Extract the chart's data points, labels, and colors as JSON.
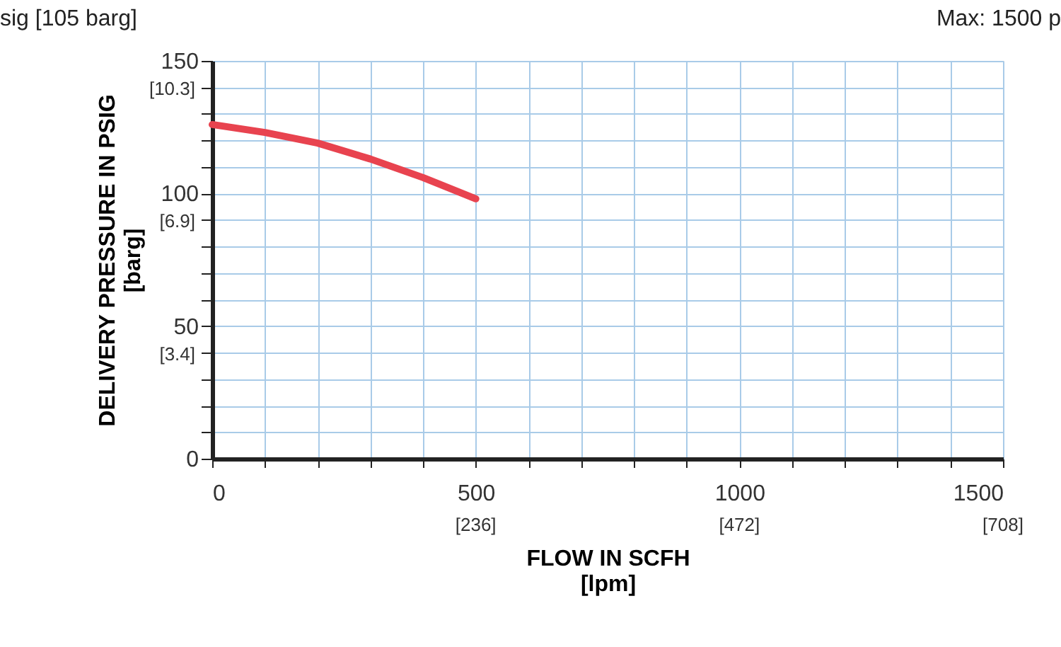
{
  "chart_data": {
    "type": "line",
    "xlabel": "FLOW IN SCFH\n[lpm]",
    "ylabel": "DELIVERY PRESSURE IN PSIG\n[barg]",
    "annotations": [
      "sig [105 barg]",
      "Max: 1500 p",
      "[10.3]",
      "[6.9]",
      "[3.4]",
      "[236]",
      "[472]",
      "[708]"
    ],
    "x": [
      0,
      100,
      200,
      300,
      400,
      500
    ],
    "series": [
      {
        "color": "#e8434f",
        "values": [
          126,
          123,
          119,
          113,
          106,
          98
        ]
      }
    ],
    "xlim": [
      0,
      1500
    ],
    "xticks": [
      0,
      {
        "value": 100,
        "label": null
      },
      {
        "value": 200,
        "label": null
      },
      {
        "value": 300,
        "label": null
      },
      {
        "value": 400,
        "label": null
      },
      500,
      {
        "value": 600,
        "label": null
      },
      {
        "value": 700,
        "label": null
      },
      {
        "value": 800,
        "label": null
      },
      {
        "value": 900,
        "label": null
      },
      1000,
      {
        "value": 1100,
        "label": null
      },
      {
        "value": 1200,
        "label": null
      },
      {
        "value": 1300,
        "label": null
      },
      {
        "value": 1400,
        "label": null
      },
      1500
    ],
    "ylim": [
      0,
      150
    ],
    "yticks": [
      0,
      {
        "value": 10,
        "label": null
      },
      {
        "value": 20,
        "label": null
      },
      {
        "value": 30,
        "label": null
      },
      {
        "value": 40,
        "label": null
      },
      50,
      {
        "value": 60,
        "label": null
      },
      {
        "value": 70,
        "label": null
      },
      {
        "value": 80,
        "label": null
      },
      {
        "value": 90,
        "label": null
      },
      100,
      {
        "value": 110,
        "label": null
      },
      {
        "value": 120,
        "label": null
      },
      {
        "value": 130,
        "label": null
      },
      {
        "value": 140,
        "label": null
      },
      150
    ],
    "grid": true,
    "marker": "none",
    "line_style": "solid"
  }
}
